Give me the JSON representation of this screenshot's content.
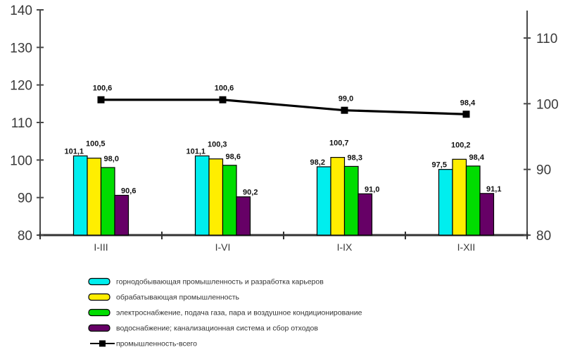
{
  "chart_data": {
    "type": "bar",
    "title": "",
    "subtitle": "",
    "categories": [
      "I-III",
      "I-VI",
      "I-IX",
      "I-XII"
    ],
    "series": [
      {
        "name": "горнодобывающая промышленность и разработка карьеров",
        "kind": "bar",
        "color": "#00EEEE",
        "values": [
          101.1,
          101.1,
          98.2,
          97.5
        ],
        "labels": [
          "101,1",
          "101,1",
          "98,2",
          "97,5"
        ]
      },
      {
        "name": "обрабатывающая промышленность",
        "kind": "bar",
        "color": "#FFEE00",
        "values": [
          100.5,
          100.3,
          100.7,
          100.2
        ],
        "labels": [
          "100,5",
          "100,3",
          "100,7",
          "100,2"
        ]
      },
      {
        "name": "электроснабжение, подача газа, пара и воздушное кондиционирование",
        "kind": "bar",
        "color": "#00DD00",
        "values": [
          98.0,
          98.6,
          98.3,
          98.4
        ],
        "labels": [
          "98,0",
          "98,6",
          "98,3",
          "98,4"
        ]
      },
      {
        "name": "водоснабжение; канализационная система и сбор отходов",
        "kind": "bar",
        "color": "#660066",
        "values": [
          90.6,
          90.2,
          91.0,
          91.1
        ],
        "labels": [
          "90,6",
          "90,2",
          "91,0",
          "91,1"
        ]
      },
      {
        "name": "промышленность-всего",
        "kind": "line",
        "axis": "right",
        "color": "#000000",
        "values": [
          100.6,
          100.6,
          99.0,
          98.4
        ],
        "labels": [
          "100,6",
          "100,6",
          "99,0",
          "98,4"
        ]
      }
    ],
    "left_axis": {
      "min": 80,
      "max": 140,
      "ticks": [
        80,
        90,
        100,
        110,
        120,
        130,
        140
      ]
    },
    "right_axis": {
      "min": 80,
      "max": 114,
      "ticks": [
        80,
        90,
        100,
        110
      ]
    },
    "grid": false,
    "legend_position": "bottom-left",
    "colors": {
      "axis_line": "#4a4a4a",
      "baseline": "#333333",
      "tick_text": "#3a3a3a",
      "value_text": "#111111",
      "legend_text": "#333333",
      "bar_border": "#000000",
      "background": "#FFFFFF"
    }
  }
}
